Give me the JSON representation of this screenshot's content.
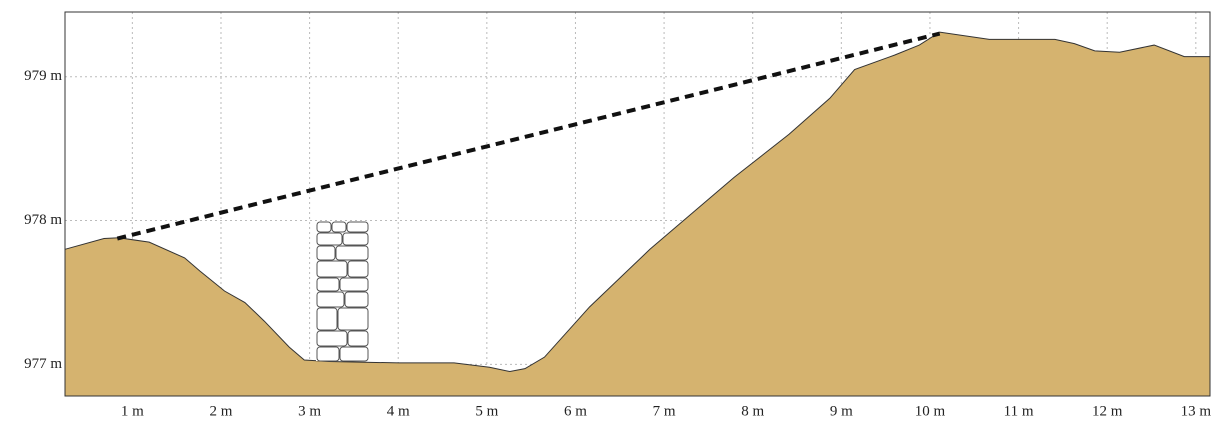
{
  "chart_data": {
    "type": "area",
    "xlim": [
      0.24,
      13.16
    ],
    "ylim": [
      976.78,
      979.45
    ],
    "xticks": [
      {
        "value": 1,
        "label": "1 m"
      },
      {
        "value": 2,
        "label": "2 m"
      },
      {
        "value": 3,
        "label": "3 m"
      },
      {
        "value": 4,
        "label": "4 m"
      },
      {
        "value": 5,
        "label": "5 m"
      },
      {
        "value": 6,
        "label": "6 m"
      },
      {
        "value": 7,
        "label": "7 m"
      },
      {
        "value": 8,
        "label": "8 m"
      },
      {
        "value": 9,
        "label": "9 m"
      },
      {
        "value": 10,
        "label": "10 m"
      },
      {
        "value": 11,
        "label": "11 m"
      },
      {
        "value": 12,
        "label": "12 m"
      },
      {
        "value": 13,
        "label": "13 m"
      }
    ],
    "yticks": [
      {
        "value": 977,
        "label": "977 m"
      },
      {
        "value": 978,
        "label": "978 m"
      },
      {
        "value": 979,
        "label": "979 m"
      }
    ],
    "grid": true,
    "series": [
      {
        "type": "area",
        "color": "#d5b36f",
        "x": [
          0.24,
          0.68,
          0.85,
          1.19,
          1.59,
          1.76,
          2.04,
          2.27,
          2.49,
          2.77,
          2.94,
          3.22,
          4.01,
          4.63,
          5.03,
          5.26,
          5.43,
          5.65,
          6.16,
          6.84,
          7.79,
          8.41,
          8.87,
          9.15,
          9.6,
          9.88,
          10.11,
          10.67,
          11.41,
          11.63,
          11.86,
          12.14,
          12.53,
          12.87,
          13.16
        ],
        "values": [
          977.8,
          977.875,
          977.88,
          977.85,
          977.74,
          977.65,
          977.51,
          977.43,
          977.3,
          977.12,
          977.03,
          977.02,
          977.01,
          977.01,
          976.98,
          976.95,
          976.97,
          977.05,
          977.4,
          977.8,
          978.3,
          978.6,
          978.85,
          979.05,
          979.15,
          979.22,
          979.31,
          979.26,
          979.26,
          979.23,
          979.18,
          979.17,
          979.22,
          979.14,
          979.14
        ]
      },
      {
        "type": "line",
        "color": "#111111",
        "dashed": true,
        "x": [
          0.83,
          10.11
        ],
        "values": [
          977.875,
          979.3
        ]
      }
    ]
  }
}
